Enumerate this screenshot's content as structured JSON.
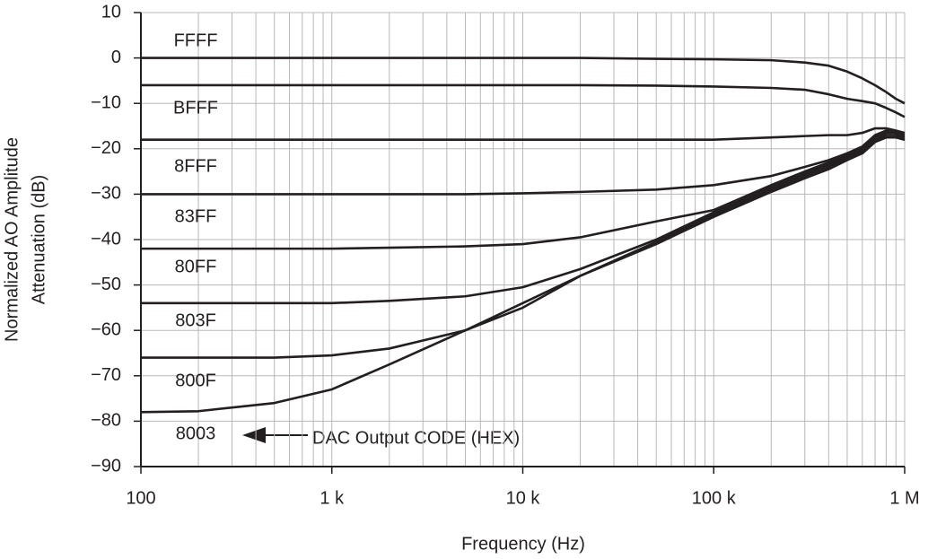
{
  "chart_data": {
    "type": "line",
    "x_label": "Frequency (Hz)",
    "y_label": [
      "Normalized AO Amplitude",
      "Attenuation (dB)"
    ],
    "annotation": "DAC Output CODE (HEX)",
    "x_log": true,
    "grid": true,
    "xlim": [
      100,
      1000000
    ],
    "ylim": [
      -90,
      10
    ],
    "xticks": [
      100,
      {
        "value": 1000,
        "label": "1 k"
      },
      {
        "value": 10000,
        "label": "10 k"
      },
      {
        "value": 100000,
        "label": "100 k"
      },
      {
        "value": 1000000,
        "label": "1 M"
      }
    ],
    "x_minor_ticks": [
      200,
      300,
      400,
      500,
      600,
      700,
      800,
      900,
      2000,
      3000,
      4000,
      5000,
      6000,
      7000,
      8000,
      9000,
      20000,
      30000,
      40000,
      50000,
      60000,
      70000,
      80000,
      90000,
      200000,
      300000,
      400000,
      500000,
      600000,
      700000,
      800000,
      900000
    ],
    "yticks": [
      10,
      0,
      {
        "value": -10,
        "label": "−10"
      },
      {
        "value": -20,
        "label": "−20"
      },
      {
        "value": -30,
        "label": "−30"
      },
      {
        "value": -40,
        "label": "−40"
      },
      {
        "value": -50,
        "label": "−50"
      },
      {
        "value": -60,
        "label": "−60"
      },
      {
        "value": -70,
        "label": "−70"
      },
      {
        "value": -80,
        "label": "−80"
      },
      {
        "value": -90,
        "label": "−90"
      }
    ],
    "x": [
      100,
      200,
      500,
      1000,
      2000,
      5000,
      10000,
      20000,
      50000,
      100000,
      200000,
      300000,
      400000,
      500000,
      600000,
      700000,
      800000,
      900000,
      1000000
    ],
    "series": [
      {
        "name": "FFFF",
        "color": "#231f20",
        "values": [
          0,
          0,
          0,
          0,
          0,
          0,
          0,
          0,
          -0.2,
          -0.3,
          -0.5,
          -1,
          -1.7,
          -3,
          -4.5,
          -6,
          -7.5,
          -9,
          -10
        ]
      },
      {
        "name": "BFFF",
        "color": "#231f20",
        "values": [
          -6,
          -6,
          -6,
          -6,
          -6,
          -6,
          -6,
          -6,
          -6.1,
          -6.3,
          -6.6,
          -7,
          -8,
          -9,
          -9.5,
          -10,
          -11,
          -12,
          -13
        ]
      },
      {
        "name": "8FFF",
        "color": "#231f20",
        "values": [
          -18,
          -18,
          -18,
          -18,
          -18,
          -18,
          -18,
          -18,
          -18,
          -18,
          -17.5,
          -17.2,
          -17,
          -17,
          -16.5,
          -15.5,
          -15.5,
          -16,
          -16.5
        ]
      },
      {
        "name": "83FF",
        "color": "#231f20",
        "values": [
          -30,
          -30,
          -30,
          -30,
          -30,
          -30,
          -29.8,
          -29.5,
          -29,
          -28,
          -26,
          -24,
          -22.5,
          -21,
          -19.5,
          -17,
          -16,
          -16.5,
          -17
        ]
      },
      {
        "name": "80FF",
        "color": "#231f20",
        "values": [
          -42,
          -42,
          -42,
          -42,
          -41.8,
          -41.5,
          -41,
          -39.5,
          -36,
          -33.5,
          -28,
          -25,
          -23,
          -21.5,
          -20,
          -17.5,
          -16.5,
          -16.5,
          -17
        ]
      },
      {
        "name": "803F",
        "color": "#231f20",
        "values": [
          -54,
          -54,
          -54,
          -54,
          -53.5,
          -52.5,
          -50.5,
          -46.5,
          -40,
          -34,
          -28.5,
          -25.5,
          -23.5,
          -21.8,
          -20.5,
          -18,
          -17,
          -17,
          -17.5
        ]
      },
      {
        "name": "800F",
        "color": "#231f20",
        "values": [
          -66,
          -66,
          -66,
          -65.5,
          -64,
          -60,
          -55,
          -48,
          -40.5,
          -34.5,
          -29,
          -26,
          -24,
          -22,
          -21,
          -18.5,
          -17.5,
          -17.5,
          -18
        ]
      },
      {
        "name": "8003",
        "color": "#231f20",
        "values": [
          -78,
          -77.8,
          -76,
          -73,
          -67.5,
          -60,
          -54,
          -48,
          -41,
          -35,
          -29.5,
          -26.5,
          -24.5,
          -22.5,
          -21,
          -18.5,
          -17.5,
          -17.5,
          -18
        ]
      }
    ]
  }
}
